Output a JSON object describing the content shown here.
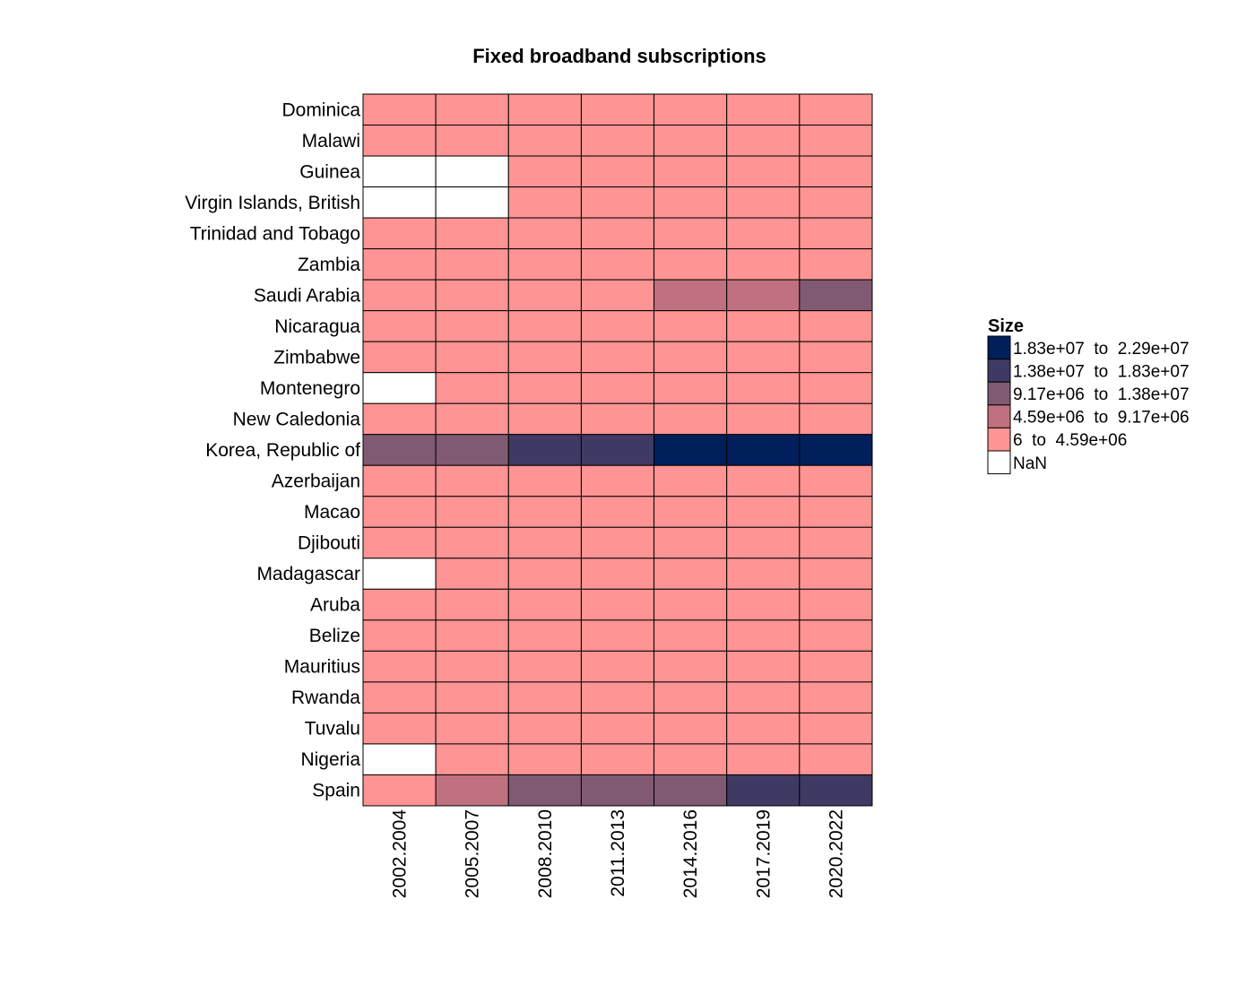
{
  "chart_data": {
    "type": "heatmap",
    "title": "Fixed broadband subscriptions",
    "xlabel": "",
    "ylabel": "",
    "x": [
      "2002.2004",
      "2005.2007",
      "2008.2010",
      "2011.2013",
      "2014.2016",
      "2017.2019",
      "2020.2022"
    ],
    "y": [
      "Dominica",
      "Malawi",
      "Guinea",
      "Virgin Islands, British",
      "Trinidad and Tobago",
      "Zambia",
      "Saudi Arabia",
      "Nicaragua",
      "Zimbabwe",
      "Montenegro",
      "New Caledonia",
      "Korea, Republic of",
      "Azerbaijan",
      "Macao",
      "Djibouti",
      "Madagascar",
      "Aruba",
      "Belize",
      "Mauritius",
      "Rwanda",
      "Tuvalu",
      "Nigeria",
      "Spain"
    ],
    "values": [
      [
        0,
        0,
        0,
        0,
        0,
        0,
        0
      ],
      [
        0,
        0,
        0,
        0,
        0,
        0,
        0
      ],
      [
        -1,
        -1,
        0,
        0,
        0,
        0,
        0
      ],
      [
        -1,
        -1,
        0,
        0,
        0,
        0,
        0
      ],
      [
        0,
        0,
        0,
        0,
        0,
        0,
        0
      ],
      [
        0,
        0,
        0,
        0,
        0,
        0,
        0
      ],
      [
        0,
        0,
        0,
        0,
        1,
        1,
        2
      ],
      [
        0,
        0,
        0,
        0,
        0,
        0,
        0
      ],
      [
        0,
        0,
        0,
        0,
        0,
        0,
        0
      ],
      [
        -1,
        0,
        0,
        0,
        0,
        0,
        0
      ],
      [
        0,
        0,
        0,
        0,
        0,
        0,
        0
      ],
      [
        2,
        2,
        3,
        3,
        4,
        4,
        4
      ],
      [
        0,
        0,
        0,
        0,
        0,
        0,
        0
      ],
      [
        0,
        0,
        0,
        0,
        0,
        0,
        0
      ],
      [
        0,
        0,
        0,
        0,
        0,
        0,
        0
      ],
      [
        -1,
        0,
        0,
        0,
        0,
        0,
        0
      ],
      [
        0,
        0,
        0,
        0,
        0,
        0,
        0
      ],
      [
        0,
        0,
        0,
        0,
        0,
        0,
        0
      ],
      [
        0,
        0,
        0,
        0,
        0,
        0,
        0
      ],
      [
        0,
        0,
        0,
        0,
        0,
        0,
        0
      ],
      [
        0,
        0,
        0,
        0,
        0,
        0,
        0
      ],
      [
        -1,
        0,
        0,
        0,
        0,
        0,
        0
      ],
      [
        0,
        1,
        2,
        2,
        2,
        3,
        3
      ]
    ],
    "value_encoding": "index into legend.bins (0 = lowest bin); -1 = NaN",
    "legend": {
      "title": "Size",
      "placement": "right",
      "bins": [
        {
          "label": "6  to  4.59e+06",
          "color": "#ff9494"
        },
        {
          "label": "4.59e+06  to  9.17e+06",
          "color": "#bf717f"
        },
        {
          "label": "9.17e+06  to  1.38e+07",
          "color": "#805a73"
        },
        {
          "label": "1.38e+07  to  1.83e+07",
          "color": "#3f3a64"
        },
        {
          "label": "1.83e+07  to  2.29e+07",
          "color": "#001f5b"
        }
      ],
      "nan": {
        "label": "NaN",
        "color": "#ffffff"
      }
    },
    "grid": false
  }
}
